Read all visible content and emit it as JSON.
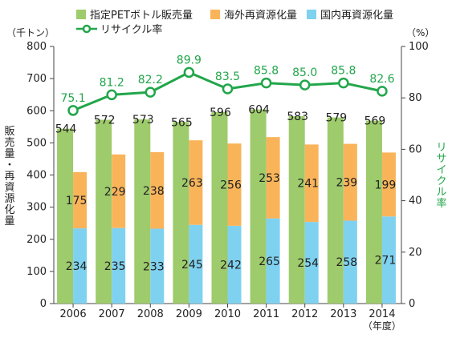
{
  "legend": {
    "pet_sales": "指定PETボトル販売量",
    "overseas": "海外再資源化量",
    "domestic": "国内再資源化量",
    "rate": "リサイクル率"
  },
  "axes": {
    "left_unit": "（千トン）",
    "right_unit": "（%）",
    "left_title": "販売量・再資源化量",
    "right_title": "リサイクル率",
    "x_unit": "（年度）"
  },
  "colors": {
    "pet_sales": "#9ecb6b",
    "overseas": "#f9b45a",
    "domestic": "#7fd1f0",
    "rate": "#21a64a"
  },
  "chart_data": {
    "type": "bar",
    "categories": [
      "2006",
      "2007",
      "2008",
      "2009",
      "2010",
      "2011",
      "2012",
      "2013",
      "2014"
    ],
    "series": [
      {
        "name": "指定PETボトル販売量",
        "type": "bar",
        "values": [
          544,
          572,
          573,
          565,
          596,
          604,
          583,
          579,
          569
        ]
      },
      {
        "name": "国内再資源化量",
        "type": "stacked-bar",
        "values": [
          234,
          235,
          233,
          245,
          242,
          265,
          254,
          258,
          271
        ]
      },
      {
        "name": "海外再資源化量",
        "type": "stacked-bar",
        "values": [
          175,
          229,
          238,
          263,
          256,
          253,
          241,
          239,
          199
        ]
      },
      {
        "name": "リサイクル率",
        "type": "line",
        "axis": "right",
        "values": [
          75.1,
          81.2,
          82.2,
          89.9,
          83.5,
          85.8,
          85.0,
          85.8,
          82.6
        ]
      }
    ],
    "ylim": [
      0,
      800
    ],
    "yticks": [
      0,
      100,
      200,
      300,
      400,
      500,
      600,
      700,
      800
    ],
    "y2lim": [
      0,
      100
    ],
    "y2ticks": [
      0,
      20,
      40,
      60,
      80,
      100
    ],
    "legend_position": "top"
  }
}
